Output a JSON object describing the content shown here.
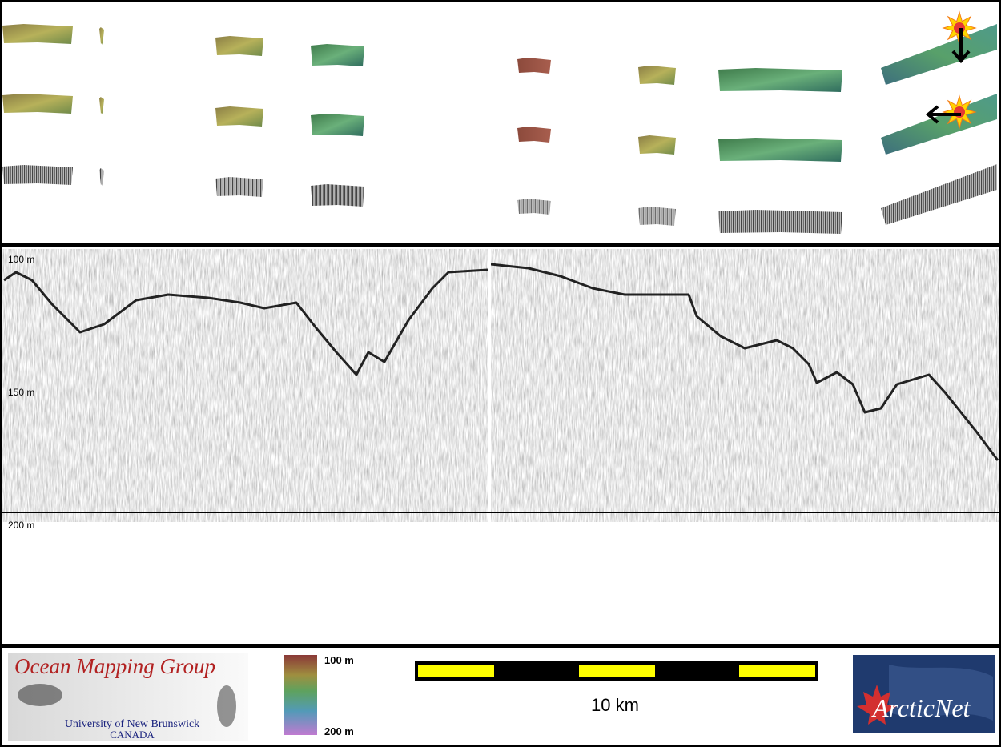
{
  "profile": {
    "depth_labels": [
      "100 m",
      "150 m",
      "200 m"
    ]
  },
  "footer": {
    "logo": {
      "title": "Ocean Mapping Group",
      "university": "University of New Brunswick",
      "country": "CANADA"
    },
    "colorbar": {
      "top": "100 m",
      "bottom": "200 m"
    },
    "scale_bar": {
      "label": "10 km"
    },
    "partner_logo": {
      "text": "ArcticNet"
    }
  }
}
